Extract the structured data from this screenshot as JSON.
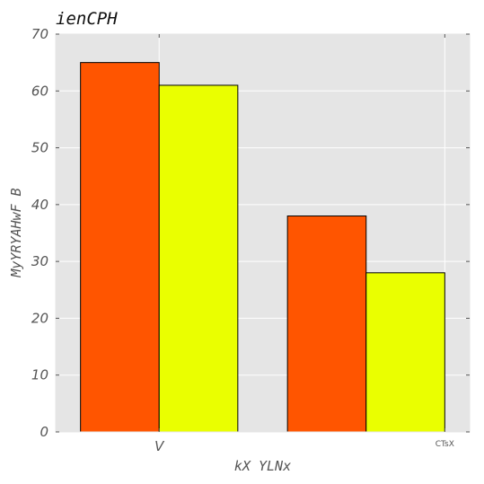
{
  "chart_data": {
    "type": "bar",
    "title": "ienCPH",
    "xlabel": "kX YLNx",
    "ylabel": "MyYRYAHwF B",
    "categories": [
      "V",
      "CTsX"
    ],
    "series": [
      {
        "values": [
          65,
          38
        ],
        "color": "#ff5500"
      },
      {
        "values": [
          61,
          28
        ],
        "color": "#eaff00"
      }
    ],
    "ylim": [
      0,
      70
    ],
    "yticks": [
      0,
      10,
      20,
      30,
      40,
      50,
      60,
      70
    ],
    "grid": true,
    "background": "#e5e5e5",
    "grid_color": "#ffffff",
    "tick_color": "#555555"
  }
}
